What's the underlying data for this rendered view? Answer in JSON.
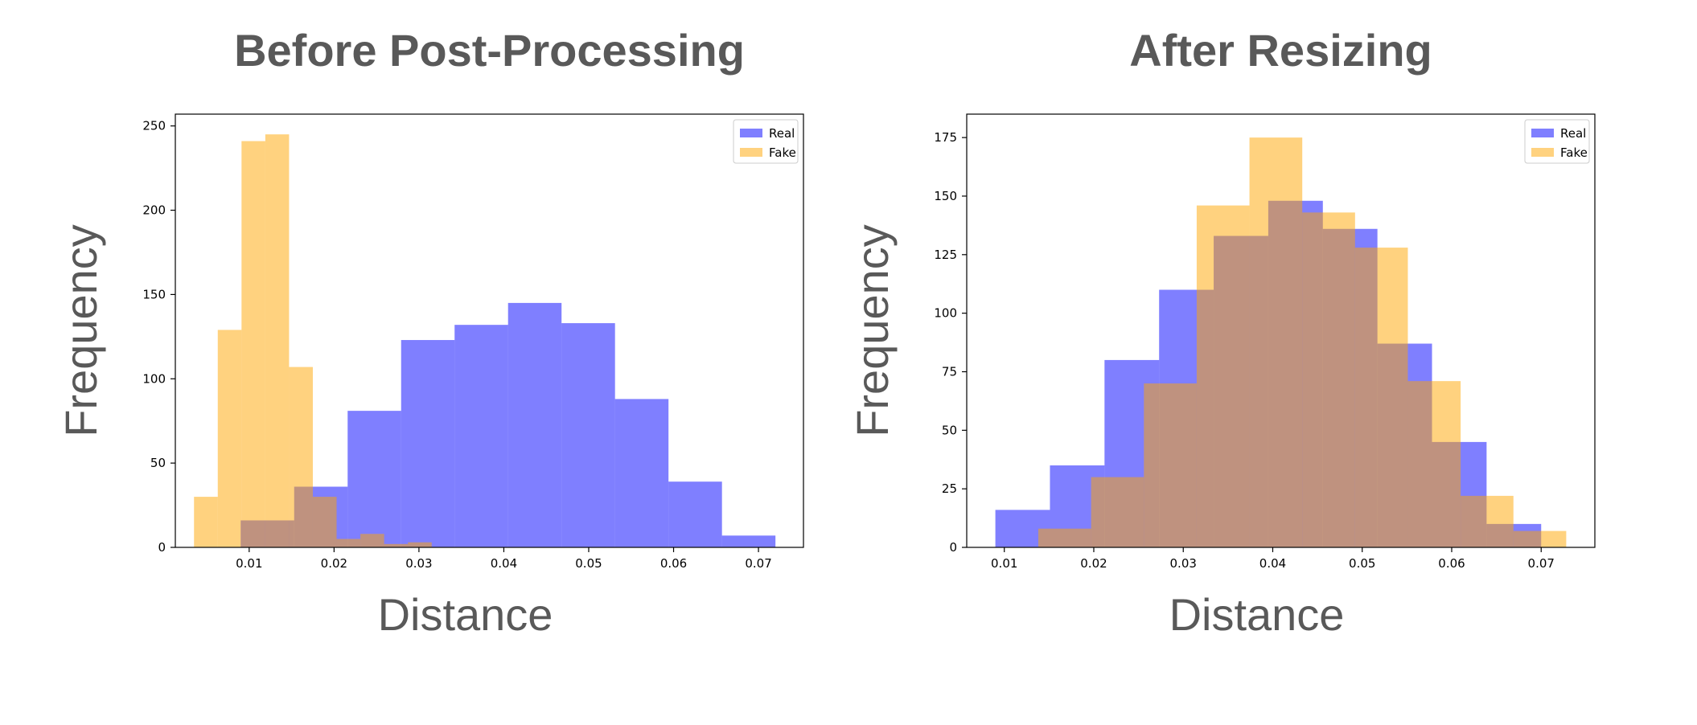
{
  "chart_data": [
    {
      "type": "histogram",
      "title": "Before Post-Processing",
      "xlabel": "Distance",
      "ylabel": "Frequency",
      "xlim": [
        0.0013,
        0.0753
      ],
      "ylim": [
        0,
        257
      ],
      "xticks": [
        0.01,
        0.02,
        0.03,
        0.04,
        0.05,
        0.06,
        0.07
      ],
      "yticks": [
        0,
        50,
        100,
        150,
        200,
        250
      ],
      "legend": "top-right",
      "grid": false,
      "series": [
        {
          "name": "Real",
          "color": "#0000ff",
          "opacity": 0.5,
          "bin_edges": [
            0.009,
            0.0153,
            0.0216,
            0.0279,
            0.0342,
            0.0405,
            0.0468,
            0.0531,
            0.0594,
            0.0657,
            0.072
          ],
          "counts": [
            16,
            36,
            81,
            123,
            132,
            145,
            133,
            88,
            39,
            7
          ]
        },
        {
          "name": "Fake",
          "color": "#ffa500",
          "opacity": 0.5,
          "bin_edges": [
            0.0035,
            0.0063,
            0.0091,
            0.0119,
            0.0147,
            0.0175,
            0.0203,
            0.0231,
            0.0259,
            0.0287,
            0.0315
          ],
          "counts": [
            30,
            129,
            241,
            245,
            107,
            30,
            5,
            8,
            2,
            3
          ]
        }
      ]
    },
    {
      "type": "histogram",
      "title": "After Resizing",
      "xlabel": "Distance",
      "ylabel": "Frequency",
      "xlim": [
        0.0058,
        0.076
      ],
      "ylim": [
        0,
        185
      ],
      "xticks": [
        0.01,
        0.02,
        0.03,
        0.04,
        0.05,
        0.06,
        0.07
      ],
      "yticks": [
        0,
        25,
        50,
        75,
        100,
        125,
        150,
        175
      ],
      "legend": "top-right",
      "grid": false,
      "series": [
        {
          "name": "Real",
          "color": "#0000ff",
          "opacity": 0.5,
          "bin_edges": [
            0.009,
            0.0151,
            0.0212,
            0.0273,
            0.0334,
            0.0395,
            0.0456,
            0.0517,
            0.0578,
            0.0639,
            0.07
          ],
          "counts": [
            16,
            35,
            80,
            110,
            133,
            148,
            136,
            87,
            45,
            10
          ]
        },
        {
          "name": "Fake",
          "color": "#ffa500",
          "opacity": 0.5,
          "bin_edges": [
            0.0138,
            0.0197,
            0.0256,
            0.0315,
            0.0374,
            0.0433,
            0.0492,
            0.0551,
            0.061,
            0.0669,
            0.0728
          ],
          "counts": [
            8,
            30,
            70,
            146,
            175,
            143,
            128,
            71,
            22,
            7
          ]
        }
      ]
    }
  ]
}
